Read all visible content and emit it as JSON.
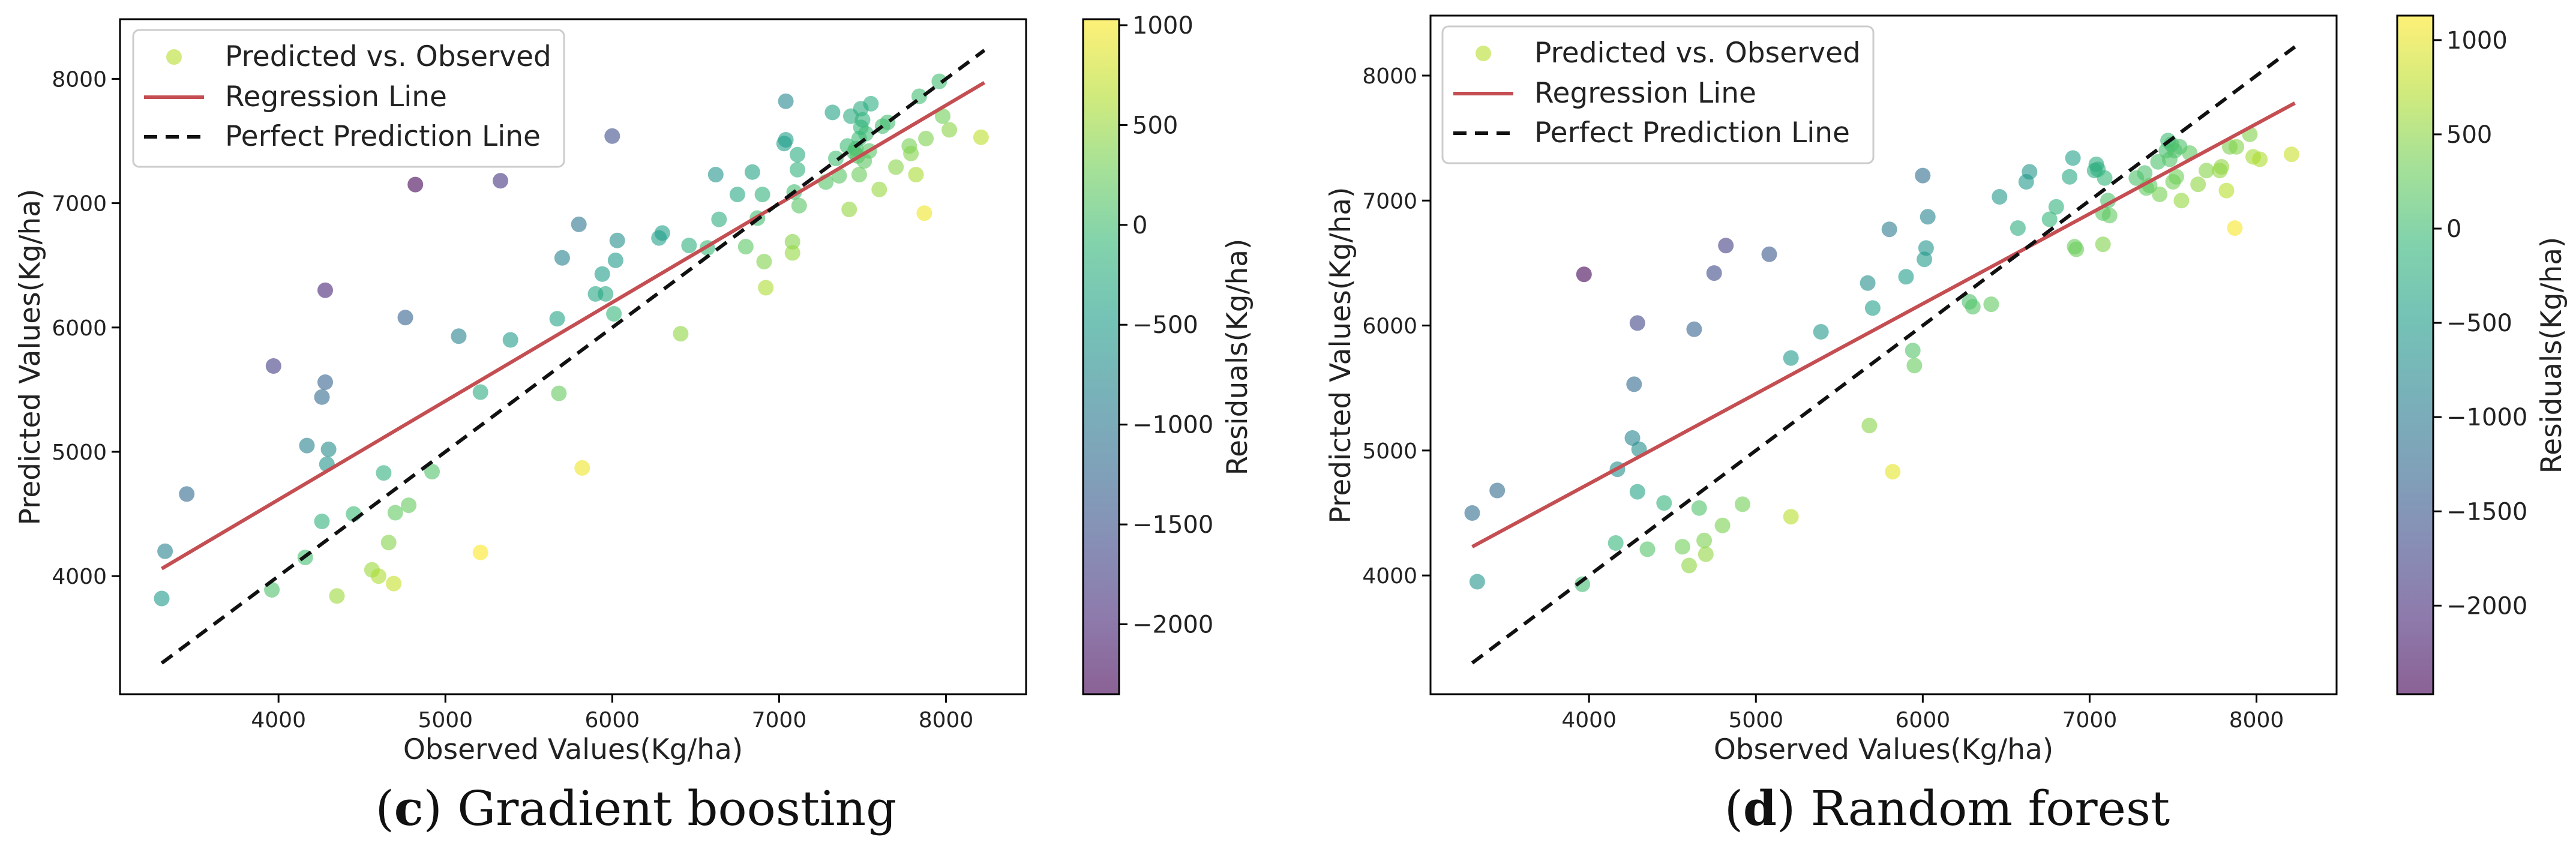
{
  "legend": {
    "scatter_label": "Predicted vs. Observed",
    "regression_label": "Regression Line",
    "perfect_label": "Perfect Prediction Line"
  },
  "colors": {
    "regression": "#c44e52",
    "perfect": "#111111",
    "viridis": [
      "#440154",
      "#482878",
      "#3e4989",
      "#31688e",
      "#26828e",
      "#1f9e89",
      "#35b779",
      "#6ece58",
      "#b5de2b",
      "#fde725"
    ]
  },
  "chart_data": [
    {
      "type": "scatter",
      "id": "gradient-boosting",
      "caption": {
        "letter": "c",
        "rest": " Gradient boosting"
      },
      "xlabel": "Observed Values(Kg/ha)",
      "ylabel": "Predicted Values(Kg/ha)",
      "xlim": [
        3050,
        8480
      ],
      "ylim": [
        3050,
        8480
      ],
      "xticks": [
        4000,
        5000,
        6000,
        7000,
        8000
      ],
      "yticks": [
        4000,
        5000,
        6000,
        7000,
        8000
      ],
      "xtick_labels": [
        "4000",
        "5000",
        "6000",
        "7000",
        "8000"
      ],
      "ytick_labels": [
        "4000",
        "5000",
        "6000",
        "7000",
        "8000"
      ],
      "colorbar": {
        "label": "Residuals(Kg/ha)",
        "range": [
          -2350,
          1030
        ],
        "ticks": [
          1000,
          500,
          0,
          -500,
          -1000,
          -1500,
          -2000
        ],
        "tick_labels": [
          "1000",
          "500",
          "0",
          "−500",
          "−1000",
          "−1500",
          "−2000"
        ]
      },
      "regression": {
        "x": [
          3300,
          8230
        ],
        "y": [
          4060,
          7970
        ]
      },
      "perfect_line": {
        "x": [
          3300,
          8230
        ],
        "y": [
          3300,
          8230
        ]
      },
      "points": [
        [
          3300,
          3820
        ],
        [
          3320,
          4200
        ],
        [
          3450,
          4660
        ],
        [
          3960,
          3890
        ],
        [
          3970,
          5690
        ],
        [
          4160,
          4150
        ],
        [
          4170,
          5050
        ],
        [
          4260,
          4440
        ],
        [
          4260,
          5440
        ],
        [
          4280,
          5560
        ],
        [
          4280,
          6300
        ],
        [
          4290,
          4900
        ],
        [
          4300,
          5020
        ],
        [
          4350,
          3840
        ],
        [
          4450,
          4500
        ],
        [
          4560,
          4050
        ],
        [
          4600,
          4000
        ],
        [
          4630,
          4830
        ],
        [
          4660,
          4270
        ],
        [
          4690,
          3940
        ],
        [
          4700,
          4510
        ],
        [
          4760,
          6080
        ],
        [
          4780,
          4570
        ],
        [
          4820,
          7150
        ],
        [
          4920,
          4840
        ],
        [
          5080,
          5930
        ],
        [
          5210,
          5480
        ],
        [
          5210,
          4190
        ],
        [
          5330,
          7180
        ],
        [
          5390,
          5900
        ],
        [
          5670,
          6070
        ],
        [
          5680,
          5470
        ],
        [
          5700,
          6560
        ],
        [
          5800,
          6830
        ],
        [
          5820,
          4870
        ],
        [
          5900,
          6270
        ],
        [
          5940,
          6430
        ],
        [
          5960,
          6270
        ],
        [
          6000,
          7540
        ],
        [
          6010,
          6110
        ],
        [
          6020,
          6540
        ],
        [
          6030,
          6700
        ],
        [
          6280,
          6720
        ],
        [
          6300,
          6760
        ],
        [
          6410,
          5950
        ],
        [
          6460,
          6660
        ],
        [
          6570,
          6640
        ],
        [
          6620,
          7230
        ],
        [
          6640,
          6870
        ],
        [
          6750,
          7070
        ],
        [
          6800,
          6650
        ],
        [
          6840,
          7250
        ],
        [
          6870,
          6880
        ],
        [
          6900,
          7070
        ],
        [
          6910,
          6530
        ],
        [
          6920,
          6320
        ],
        [
          7030,
          7480
        ],
        [
          7040,
          7820
        ],
        [
          7040,
          7510
        ],
        [
          7080,
          6690
        ],
        [
          7080,
          6600
        ],
        [
          7090,
          7090
        ],
        [
          7110,
          7390
        ],
        [
          7110,
          7270
        ],
        [
          7120,
          6980
        ],
        [
          7280,
          7170
        ],
        [
          7320,
          7730
        ],
        [
          7340,
          7360
        ],
        [
          7360,
          7220
        ],
        [
          7410,
          7460
        ],
        [
          7420,
          6950
        ],
        [
          7430,
          7700
        ],
        [
          7450,
          7410
        ],
        [
          7460,
          7440
        ],
        [
          7470,
          7380
        ],
        [
          7480,
          7230
        ],
        [
          7480,
          7520
        ],
        [
          7490,
          7610
        ],
        [
          7490,
          7760
        ],
        [
          7500,
          7670
        ],
        [
          7510,
          7340
        ],
        [
          7520,
          7560
        ],
        [
          7540,
          7420
        ],
        [
          7550,
          7800
        ],
        [
          7600,
          7110
        ],
        [
          7620,
          7620
        ],
        [
          7650,
          7650
        ],
        [
          7700,
          7290
        ],
        [
          7780,
          7460
        ],
        [
          7790,
          7400
        ],
        [
          7820,
          7230
        ],
        [
          7840,
          7860
        ],
        [
          7870,
          6920
        ],
        [
          7880,
          7520
        ],
        [
          7960,
          7980
        ],
        [
          7980,
          7700
        ],
        [
          8020,
          7590
        ],
        [
          8210,
          7530
        ]
      ]
    },
    {
      "type": "scatter",
      "id": "random-forest",
      "caption": {
        "letter": "d",
        "rest": " Random forest"
      },
      "xlabel": "Observed Values(Kg/ha)",
      "ylabel": "Predicted Values(Kg/ha)",
      "xlim": [
        3050,
        8480
      ],
      "ylim": [
        3050,
        8480
      ],
      "xticks": [
        4000,
        5000,
        6000,
        7000,
        8000
      ],
      "yticks": [
        4000,
        5000,
        6000,
        7000,
        8000
      ],
      "xtick_labels": [
        "4000",
        "5000",
        "6000",
        "7000",
        "8000"
      ],
      "ytick_labels": [
        "4000",
        "5000",
        "6000",
        "7000",
        "8000"
      ],
      "colorbar": {
        "label": "Residuals(Kg/ha)",
        "range": [
          -2470,
          1130
        ],
        "ticks": [
          1000,
          500,
          0,
          -500,
          -1000,
          -1500,
          -2000
        ],
        "tick_labels": [
          "1000",
          "500",
          "0",
          "−500",
          "−1000",
          "−1500",
          "−2000"
        ]
      },
      "regression": {
        "x": [
          3300,
          8230
        ],
        "y": [
          4230,
          7780
        ]
      },
      "perfect_line": {
        "x": [
          3300,
          8230
        ],
        "y": [
          3300,
          8230
        ]
      },
      "points": [
        [
          3300,
          4500
        ],
        [
          3330,
          3950
        ],
        [
          3450,
          4680
        ],
        [
          3960,
          3930
        ],
        [
          3970,
          6410
        ],
        [
          4160,
          4260
        ],
        [
          4170,
          4850
        ],
        [
          4260,
          5100
        ],
        [
          4270,
          5530
        ],
        [
          4290,
          6020
        ],
        [
          4290,
          4670
        ],
        [
          4300,
          5010
        ],
        [
          4350,
          4210
        ],
        [
          4450,
          4580
        ],
        [
          4560,
          4230
        ],
        [
          4600,
          4080
        ],
        [
          4630,
          5970
        ],
        [
          4660,
          4540
        ],
        [
          4690,
          4280
        ],
        [
          4700,
          4170
        ],
        [
          4750,
          6420
        ],
        [
          4800,
          4400
        ],
        [
          4820,
          6640
        ],
        [
          4920,
          4570
        ],
        [
          5080,
          6570
        ],
        [
          5210,
          5740
        ],
        [
          5210,
          4470
        ],
        [
          5390,
          5950
        ],
        [
          5670,
          6340
        ],
        [
          5680,
          5200
        ],
        [
          5700,
          6140
        ],
        [
          5800,
          6770
        ],
        [
          5820,
          4830
        ],
        [
          5900,
          6390
        ],
        [
          5940,
          5800
        ],
        [
          5950,
          5680
        ],
        [
          6000,
          7200
        ],
        [
          6010,
          6530
        ],
        [
          6020,
          6620
        ],
        [
          6030,
          6870
        ],
        [
          6280,
          6190
        ],
        [
          6300,
          6150
        ],
        [
          6410,
          6170
        ],
        [
          6460,
          7030
        ],
        [
          6570,
          6780
        ],
        [
          6620,
          7150
        ],
        [
          6640,
          7230
        ],
        [
          6760,
          6850
        ],
        [
          6800,
          6950
        ],
        [
          6880,
          7190
        ],
        [
          6900,
          7340
        ],
        [
          6910,
          6630
        ],
        [
          6920,
          6610
        ],
        [
          7030,
          7240
        ],
        [
          7040,
          7290
        ],
        [
          7050,
          7250
        ],
        [
          7080,
          6900
        ],
        [
          7080,
          6650
        ],
        [
          7090,
          7180
        ],
        [
          7110,
          7000
        ],
        [
          7120,
          6880
        ],
        [
          7280,
          7180
        ],
        [
          7330,
          7220
        ],
        [
          7340,
          7100
        ],
        [
          7360,
          7120
        ],
        [
          7410,
          7310
        ],
        [
          7420,
          7050
        ],
        [
          7460,
          7400
        ],
        [
          7470,
          7480
        ],
        [
          7480,
          7330
        ],
        [
          7490,
          7450
        ],
        [
          7500,
          7150
        ],
        [
          7510,
          7400
        ],
        [
          7520,
          7190
        ],
        [
          7540,
          7430
        ],
        [
          7550,
          7000
        ],
        [
          7600,
          7380
        ],
        [
          7650,
          7130
        ],
        [
          7700,
          7240
        ],
        [
          7780,
          7240
        ],
        [
          7790,
          7270
        ],
        [
          7820,
          7080
        ],
        [
          7840,
          7430
        ],
        [
          7870,
          6780
        ],
        [
          7880,
          7430
        ],
        [
          7960,
          7530
        ],
        [
          7980,
          7350
        ],
        [
          8020,
          7330
        ],
        [
          8210,
          7370
        ]
      ]
    }
  ]
}
